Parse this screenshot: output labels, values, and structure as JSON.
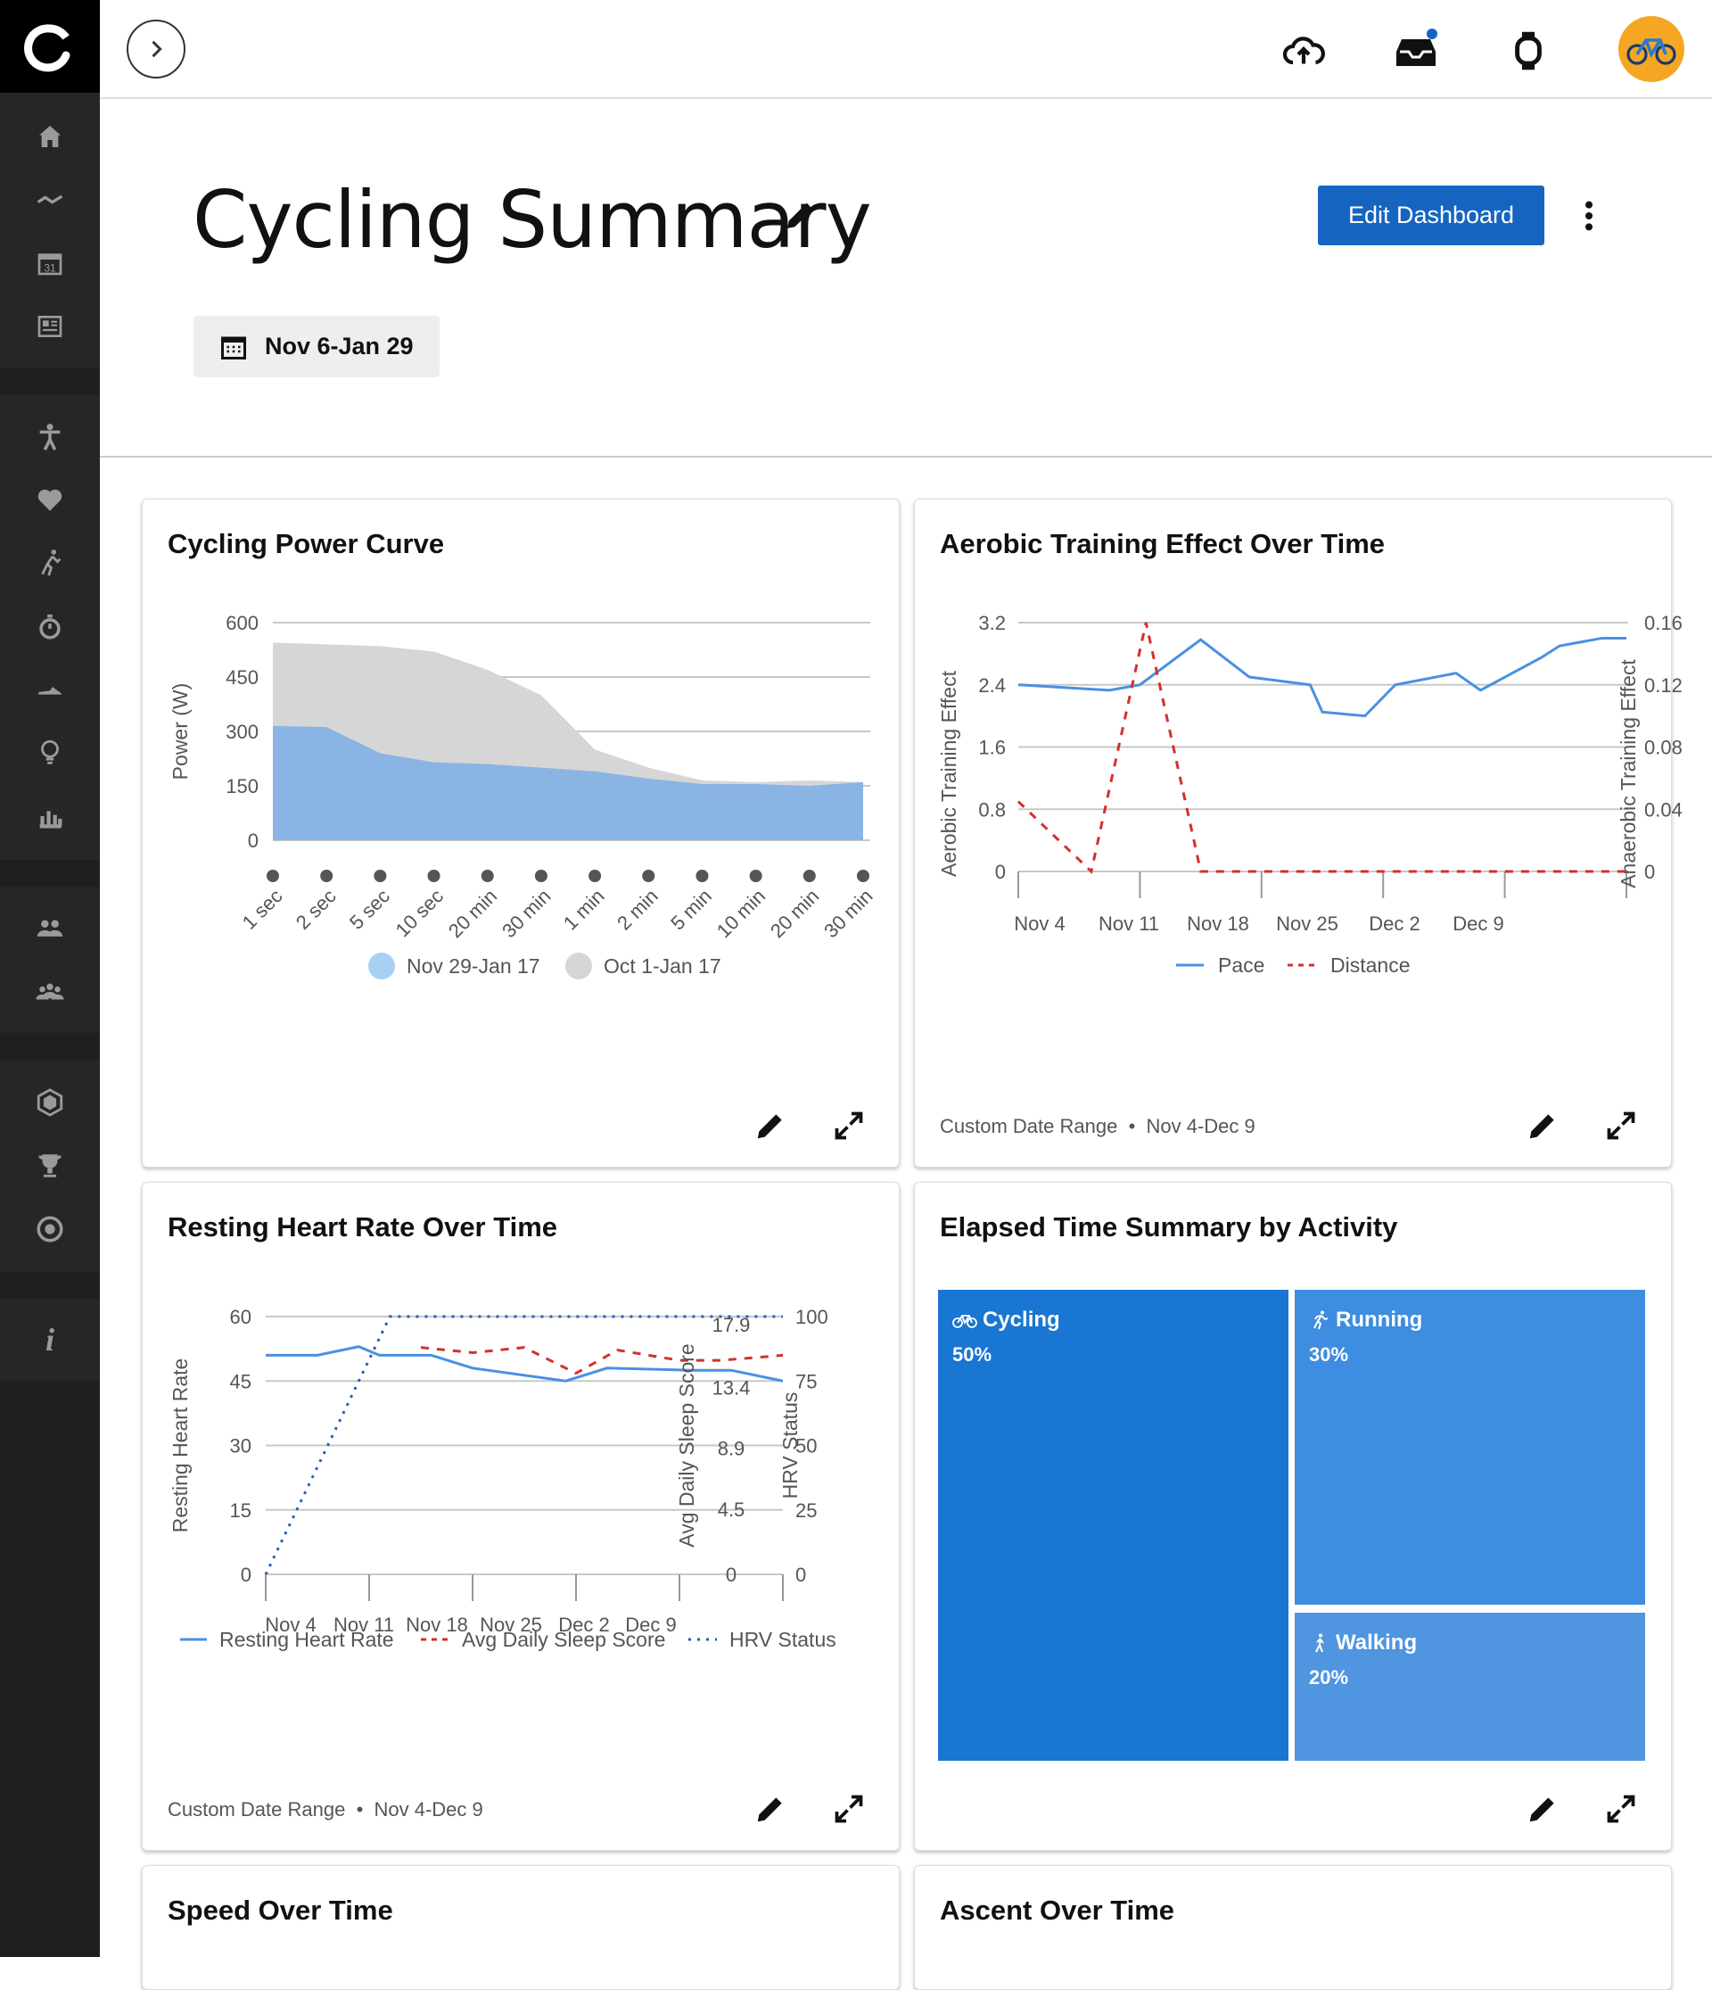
{
  "app": {
    "title": "Cycling Summary"
  },
  "header": {
    "edit_dashboard": "Edit Dashboard",
    "date_range": "Nov 6-Jan 29"
  },
  "colors": {
    "primary": "#1565c0",
    "pace_blue": "#4a90e2",
    "red": "#d32f2f",
    "sidebar": "#1f1f1f",
    "avatar": "#f5a623"
  },
  "sidebar": {
    "items": [
      {
        "icon": "home-icon"
      },
      {
        "icon": "activity-icon"
      },
      {
        "icon": "calendar-icon"
      },
      {
        "icon": "news-icon"
      },
      {
        "icon": "person-icon"
      },
      {
        "icon": "heart-icon"
      },
      {
        "icon": "training-icon"
      },
      {
        "icon": "stopwatch-icon"
      },
      {
        "icon": "gear-icon"
      },
      {
        "icon": "insights-icon"
      },
      {
        "icon": "reports-icon"
      },
      {
        "icon": "connections-icon"
      },
      {
        "icon": "groups-icon"
      },
      {
        "icon": "badges-icon"
      },
      {
        "icon": "trophy-icon"
      },
      {
        "icon": "goals-icon"
      },
      {
        "icon": "info-icon",
        "label": "i"
      }
    ]
  },
  "cards": {
    "power": {
      "title": "Cycling Power Curve",
      "ylabel": "Power (W)",
      "legend": [
        "Nov 29-Jan 17",
        "Oct 1-Jan 17"
      ]
    },
    "aerobic": {
      "title": "Aerobic Training Effect Over Time",
      "ylabel": "Aerobic Training Effect",
      "y2label": "Anaerobic Training Effect",
      "legend": [
        "Pace",
        "Distance"
      ],
      "footer_range": "Custom Date Range",
      "footer_dates": "Nov 4-Dec 9"
    },
    "rhr": {
      "title": "Resting Heart Rate Over Time",
      "ylabel": "Resting Heart Rate",
      "y2label": "Avg Daily Sleep Score",
      "y3label": "HRV Status",
      "legend": [
        "Resting Heart Rate",
        "Avg Daily Sleep Score",
        "HRV Status"
      ],
      "footer_range": "Custom Date Range",
      "footer_dates": "Nov 4-Dec 9"
    },
    "elapsed": {
      "title": "Elapsed Time Summary by Activity"
    },
    "speed": {
      "title": "Speed Over Time"
    },
    "ascent": {
      "title": "Ascent Over Time"
    }
  },
  "chart_data": [
    {
      "type": "area",
      "title": "Cycling Power Curve",
      "ylabel": "Power (W)",
      "categories": [
        "1 sec",
        "2 sec",
        "5 sec",
        "10 sec",
        "20 min",
        "30 min",
        "1 min",
        "2 min",
        "5 min",
        "10 min",
        "20 min",
        "30 min"
      ],
      "yticks": [
        0,
        150,
        300,
        450,
        600
      ],
      "ylim": [
        0,
        600
      ],
      "series": [
        {
          "name": "Oct 1-Jan 17",
          "color": "#d6d6d6",
          "values": [
            545,
            540,
            535,
            520,
            470,
            400,
            250,
            200,
            165,
            160,
            165,
            160
          ]
        },
        {
          "name": "Nov 29-Jan 17",
          "color": "#8ab4e4",
          "values": [
            315,
            312,
            240,
            215,
            210,
            200,
            190,
            170,
            155,
            155,
            150,
            160
          ]
        }
      ]
    },
    {
      "type": "line",
      "title": "Aerobic Training Effect Over Time",
      "ylabel": "Aerobic Training Effect",
      "y2label": "Anaerobic Training Effect",
      "x": [
        "Nov 4",
        "Nov 11",
        "Nov 18",
        "Nov 25",
        "Dec 2",
        "Dec 9"
      ],
      "yticks": [
        "0",
        "0.8",
        "1.6",
        "2.4",
        "3.2"
      ],
      "y2ticks": [
        "0",
        "0.04",
        "0.08",
        "0.12",
        "0.16"
      ],
      "ylim": [
        0,
        3.2
      ],
      "y2lim": [
        0,
        0.16
      ],
      "series": [
        {
          "name": "Pace",
          "axis": "left",
          "color": "#4a90e2",
          "style": "solid",
          "x": [
            0,
            0.75,
            1,
            1.5,
            1.9,
            2.4,
            2.5,
            2.85,
            3.1,
            3.6,
            3.8,
            4.3,
            4.45,
            4.8,
            5
          ],
          "values": [
            2.4,
            2.33,
            2.4,
            2.98,
            2.5,
            2.4,
            2.05,
            2.0,
            2.4,
            2.55,
            2.33,
            2.75,
            2.9,
            3.0,
            3.0
          ]
        },
        {
          "name": "Distance",
          "axis": "right",
          "color": "#d32f2f",
          "style": "dashed",
          "x": [
            0,
            0.6,
            1.05,
            1.5,
            2,
            3,
            4,
            5
          ],
          "values": [
            0.045,
            0,
            0.16,
            0,
            0,
            0,
            0,
            0
          ]
        }
      ]
    },
    {
      "type": "line",
      "title": "Resting Heart Rate Over Time",
      "ylabel": "Resting Heart Rate",
      "y2label": "Avg Daily Sleep Score",
      "y3label": "HRV Status",
      "x": [
        "Nov 4",
        "Nov 11",
        "Nov 18",
        "Nov 25",
        "Dec 2",
        "Dec 9"
      ],
      "yticks": [
        "0",
        "15",
        "30",
        "45",
        "60"
      ],
      "y2ticks": [
        "0",
        "25",
        "50",
        "75",
        "100"
      ],
      "y3ticks": [
        "0",
        "4.5",
        "8.9",
        "13.4",
        "17.9"
      ],
      "ylim": [
        0,
        60
      ],
      "y2lim": [
        0,
        100
      ],
      "y3lim": [
        0,
        17.9
      ],
      "series": [
        {
          "name": "Resting Heart Rate",
          "axis": "left",
          "color": "#4a90e2",
          "style": "solid",
          "x": [
            0,
            0.5,
            0.9,
            1.1,
            1.6,
            2,
            2.9,
            3.3,
            4.1,
            4.5,
            5
          ],
          "values": [
            51,
            51,
            53,
            51,
            51,
            48,
            45,
            48,
            47.5,
            47.5,
            45
          ]
        },
        {
          "name": "Avg Daily Sleep Score",
          "axis": "right",
          "color": "#d32f2f",
          "style": "dashed",
          "x": [
            1.5,
            2,
            2.5,
            3,
            3.4,
            4,
            4.4,
            5
          ],
          "values": [
            88,
            86,
            88,
            78,
            87,
            83,
            83,
            85
          ]
        },
        {
          "name": "HRV Status",
          "axis": "third",
          "color": "#1f5fbf",
          "style": "dotted",
          "x": [
            0,
            1.2,
            5
          ],
          "values": [
            0,
            17.9,
            17.9
          ]
        }
      ]
    },
    {
      "type": "treemap",
      "title": "Elapsed Time Summary by Activity",
      "categories": [
        "Cycling",
        "Running",
        "Walking"
      ],
      "values": [
        50,
        30,
        20
      ]
    }
  ],
  "treemap": {
    "cycling": {
      "label": "Cycling",
      "pct": "50%"
    },
    "running": {
      "label": "Running",
      "pct": "30%"
    },
    "walking": {
      "label": "Walking",
      "pct": "20%"
    }
  },
  "footer_sep": "•"
}
